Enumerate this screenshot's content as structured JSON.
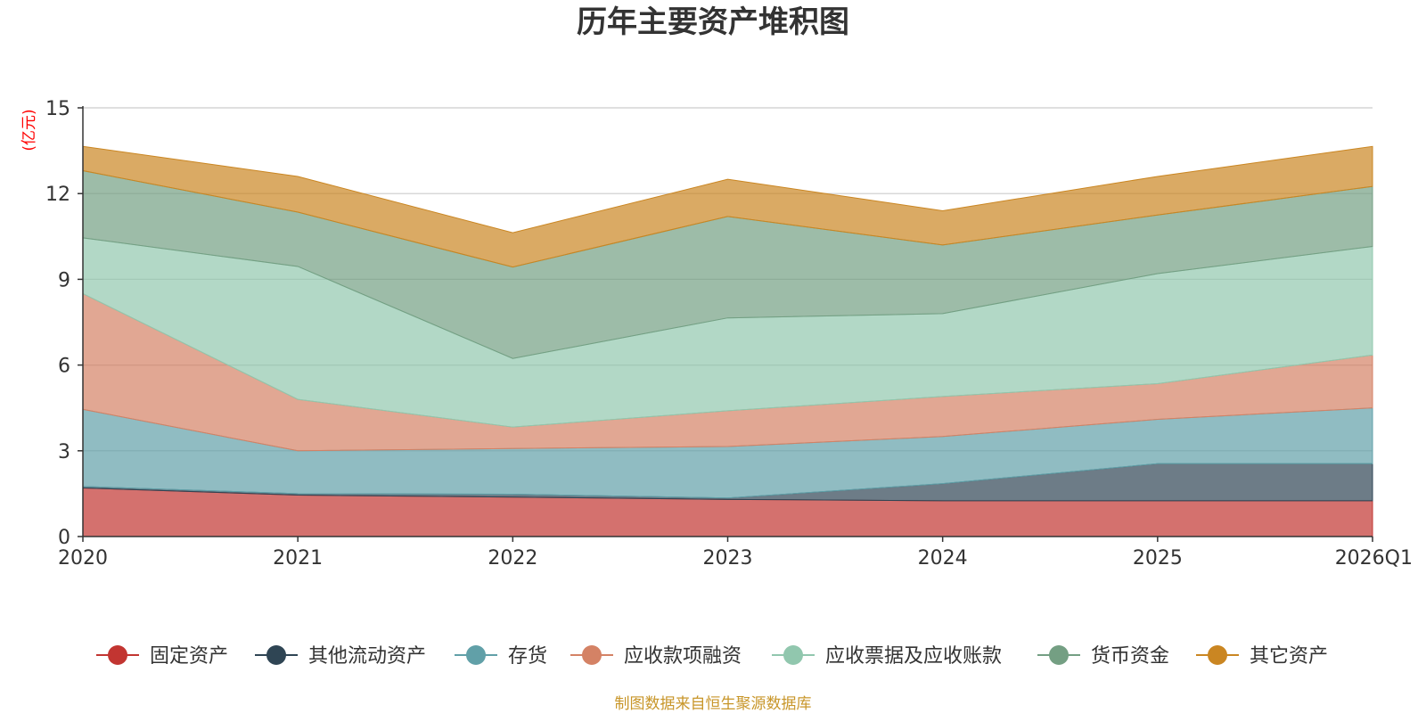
{
  "chart_data": {
    "type": "area",
    "stacked": true,
    "title": "历年主要资产堆积图",
    "ylabel": "(亿元)",
    "xlabel": "",
    "ylim": [
      0,
      15
    ],
    "yticks": [
      0,
      3,
      6,
      9,
      12,
      15
    ],
    "categories": [
      "2020",
      "2021",
      "2022",
      "2023",
      "2024",
      "2025",
      "2026Q1"
    ],
    "grid": true,
    "legend_position": "bottom",
    "series": [
      {
        "name": "固定资产",
        "color": "#c23531",
        "values": [
          1.7,
          1.45,
          1.38,
          1.3,
          1.25,
          1.25,
          1.25
        ]
      },
      {
        "name": "其他流动资产",
        "color": "#2f4554",
        "values": [
          0.05,
          0.05,
          0.1,
          0.05,
          0.6,
          1.3,
          1.3
        ]
      },
      {
        "name": "存货",
        "color": "#61a0a8",
        "values": [
          2.7,
          1.5,
          1.6,
          1.8,
          1.65,
          1.55,
          1.95
        ]
      },
      {
        "name": "应收款项融资",
        "color": "#d48265",
        "values": [
          4.05,
          1.8,
          0.75,
          1.25,
          1.4,
          1.25,
          1.85
        ]
      },
      {
        "name": "应收票据及应收账款",
        "color": "#91c7ae",
        "values": [
          1.95,
          4.65,
          2.4,
          3.25,
          2.9,
          3.85,
          3.8
        ]
      },
      {
        "name": "货币资金",
        "color": "#749f83",
        "values": [
          2.35,
          1.9,
          3.2,
          3.55,
          2.4,
          2.05,
          2.1
        ]
      },
      {
        "name": "其它资产",
        "color": "#ca8622",
        "values": [
          0.85,
          1.25,
          1.2,
          1.3,
          1.2,
          1.35,
          1.4
        ]
      }
    ],
    "source_note": "制图数据来自恒生聚源数据库"
  }
}
